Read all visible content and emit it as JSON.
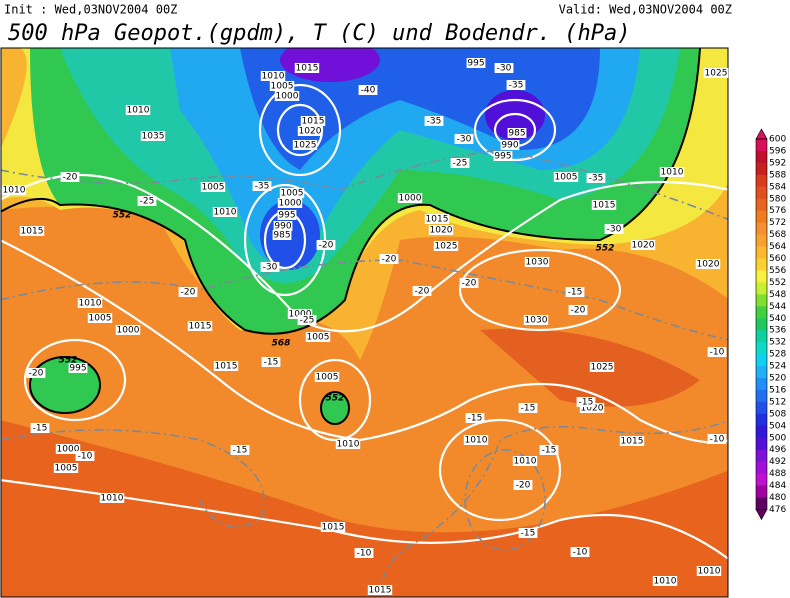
{
  "header": {
    "init": "Init : Wed,03NOV2004 00Z",
    "valid": "Valid: Wed,03NOV2004 00Z",
    "title": "500 hPa Geopot.(gpdm), T (C) und Bodendr. (hPa)"
  },
  "isobar_labels": [
    "1015",
    "1010",
    "1005",
    "1000",
    "1010",
    "1035",
    "1015",
    "1020",
    "1025",
    "995",
    "985",
    "990",
    "995",
    "1025",
    "1010",
    "1005",
    "1005",
    "1000",
    "995",
    "990",
    "985",
    "1010",
    "1000",
    "1015",
    "1020",
    "1025",
    "1005",
    "1015",
    "1010",
    "1020",
    "1020",
    "1030",
    "1030",
    "1015",
    "1010",
    "1005",
    "1000",
    "995",
    "1015",
    "1000",
    "1005",
    "1015",
    "1005",
    "1010",
    "1025",
    "1020",
    "1015",
    "1010",
    "1010",
    "1000",
    "1005",
    "1010",
    "1015",
    "1015",
    "1010",
    "1010"
  ],
  "temperature_labels": [
    "-40",
    "-35",
    "-30",
    "-35",
    "-30",
    "-25",
    "-35",
    "-35",
    "-20",
    "-25",
    "-30",
    "-20",
    "-20",
    "-20",
    "-20",
    "-20",
    "-25",
    "-15",
    "-15",
    "-20",
    "-10",
    "-20",
    "-15",
    "-10",
    "-15",
    "-15",
    "-15",
    "-15",
    "-15",
    "-20",
    "-15",
    "-10",
    "-10",
    "-10",
    "-30"
  ],
  "geopotential_labels": [
    "552",
    "552",
    "568",
    "552",
    "552"
  ],
  "colorbar": {
    "labels": [
      "600",
      "596",
      "592",
      "588",
      "584",
      "580",
      "576",
      "572",
      "568",
      "564",
      "560",
      "556",
      "552",
      "548",
      "544",
      "540",
      "536",
      "532",
      "528",
      "524",
      "520",
      "516",
      "512",
      "508",
      "504",
      "500",
      "496",
      "492",
      "488",
      "484",
      "480",
      "476"
    ],
    "colors": [
      "#d8105c",
      "#c0102c",
      "#c82020",
      "#d83c1c",
      "#e05020",
      "#e86420",
      "#f07c20",
      "#f49030",
      "#f8a030",
      "#fcb830",
      "#fcd030",
      "#f8f040",
      "#c8f030",
      "#80e030",
      "#40d040",
      "#20c860",
      "#10d0a0",
      "#10d8c8",
      "#10d0f0",
      "#20b0f8",
      "#2090f8",
      "#2070f0",
      "#2050e8",
      "#2030e0",
      "#3018d8",
      "#5010d8",
      "#8010d8",
      "#a010d8",
      "#c010d0",
      "#a000a0",
      "#600060"
    ]
  }
}
